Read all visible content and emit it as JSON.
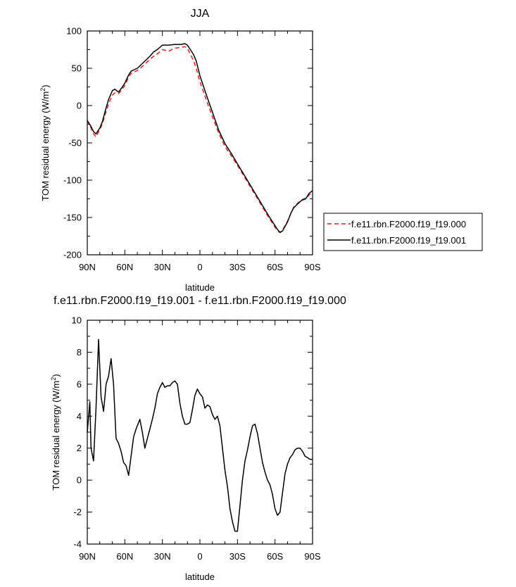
{
  "chart_data": [
    {
      "type": "line",
      "title": "JJA",
      "xlabel": "latitude",
      "ylabel_main": "TOM residual energy (W/m",
      "ylabel_sup": "2",
      "ylabel_tail": ")",
      "xlim": [
        90,
        -90
      ],
      "ylim": [
        -200,
        100
      ],
      "xticks": [
        90,
        60,
        30,
        0,
        -30,
        -60,
        -90
      ],
      "xtick_labels": [
        "90N",
        "60N",
        "30N",
        "0",
        "30S",
        "60S",
        "90S"
      ],
      "yticks": [
        -200,
        -150,
        -100,
        -50,
        0,
        50,
        100
      ],
      "ytick_labels": [
        "-200",
        "-150",
        "-100",
        "-50",
        "0",
        "50",
        "100"
      ],
      "legend_position": "right",
      "grid": false,
      "series": [
        {
          "name": "f.e11.rbn.F2000.f19_f19.000",
          "color": "#e0201b",
          "dash": "dashed",
          "x": [
            90,
            87,
            85,
            83,
            80,
            78,
            75,
            73,
            70,
            68,
            65,
            62,
            60,
            57,
            55,
            50,
            45,
            40,
            37,
            35,
            32,
            30,
            25,
            20,
            15,
            12,
            10,
            8,
            5,
            3,
            0,
            -5,
            -10,
            -15,
            -20,
            -25,
            -30,
            -35,
            -40,
            -45,
            -50,
            -55,
            -60,
            -62,
            -64,
            -66,
            -70,
            -73,
            -75,
            -78,
            -80,
            -82,
            -85,
            -87,
            -90
          ],
          "values": [
            -20,
            -30,
            -38,
            -42,
            -32,
            -25,
            -8,
            2,
            14,
            17,
            16,
            22,
            27,
            38,
            43,
            47,
            54,
            62,
            66,
            68,
            72,
            75,
            73,
            77,
            78,
            79,
            77,
            70,
            60,
            50,
            32,
            8,
            -15,
            -37,
            -55,
            -67,
            -80,
            -94,
            -108,
            -122,
            -136,
            -150,
            -163,
            -168,
            -170,
            -167,
            -155,
            -143,
            -136,
            -131,
            -128,
            -127,
            -125,
            -120,
            -116
          ]
        },
        {
          "name": "f.e11.rbn.F2000.f19_f19.001",
          "color": "#000000",
          "dash": "solid",
          "x": [
            90,
            87,
            85,
            83,
            80,
            78,
            75,
            73,
            70,
            68,
            65,
            62,
            60,
            57,
            55,
            50,
            45,
            40,
            37,
            35,
            32,
            30,
            25,
            20,
            15,
            12,
            10,
            8,
            5,
            3,
            0,
            -5,
            -10,
            -15,
            -20,
            -25,
            -30,
            -35,
            -40,
            -45,
            -50,
            -55,
            -60,
            -62,
            -64,
            -66,
            -70,
            -73,
            -75,
            -78,
            -80,
            -82,
            -85,
            -87,
            -90
          ],
          "values": [
            -20,
            -28,
            -35,
            -38,
            -30,
            -22,
            -3,
            8,
            20,
            22,
            18,
            25,
            30,
            41,
            46,
            50,
            58,
            66,
            72,
            74,
            78,
            81,
            81,
            82,
            82,
            83,
            81,
            76,
            68,
            60,
            40,
            15,
            -9,
            -33,
            -51,
            -64,
            -78,
            -92,
            -106,
            -120,
            -134,
            -148,
            -161,
            -166,
            -170,
            -168,
            -156,
            -143,
            -137,
            -132,
            -129,
            -126,
            -124,
            -118,
            -114
          ]
        }
      ]
    },
    {
      "type": "line",
      "title": "f.e11.rbn.F2000.f19_f19.001 - f.e11.rbn.F2000.f19_f19.000",
      "xlabel": "latitude",
      "ylabel_main": "TOM residual energy (W/m",
      "ylabel_sup": "2",
      "ylabel_tail": ")",
      "xlim": [
        90,
        -90
      ],
      "ylim": [
        -4,
        10
      ],
      "xticks": [
        90,
        60,
        30,
        0,
        -30,
        -60,
        -90
      ],
      "xtick_labels": [
        "90N",
        "60N",
        "30N",
        "0",
        "30S",
        "60S",
        "90S"
      ],
      "yticks": [
        -4,
        -2,
        0,
        2,
        4,
        6,
        8,
        10
      ],
      "ytick_labels": [
        "-4",
        "-2",
        "0",
        "2",
        "4",
        "6",
        "8",
        "10"
      ],
      "grid": false,
      "series": [
        {
          "color": "#000000",
          "dash": "solid",
          "x": [
            90,
            88,
            87,
            85,
            83,
            81,
            79,
            77,
            75,
            73,
            71,
            69,
            67,
            65,
            63,
            61,
            59,
            57,
            55,
            53,
            51,
            48,
            46,
            44,
            42,
            40,
            38,
            36,
            34,
            32,
            30,
            28,
            26,
            24,
            22,
            20,
            18,
            16,
            14,
            12,
            10,
            8,
            6,
            4,
            2,
            0,
            -2,
            -4,
            -6,
            -8,
            -10,
            -12,
            -14,
            -16,
            -18,
            -20,
            -22,
            -24,
            -26,
            -28,
            -30,
            -32,
            -34,
            -36,
            -38,
            -40,
            -42,
            -44,
            -46,
            -48,
            -50,
            -52,
            -54,
            -56,
            -58,
            -60,
            -62,
            -64,
            -66,
            -68,
            -70,
            -72,
            -74,
            -76,
            -78,
            -80,
            -82,
            -84,
            -86,
            -88,
            -90
          ],
          "values": [
            3.0,
            4.9,
            2.0,
            1.2,
            4.5,
            8.8,
            5.2,
            4.3,
            6.0,
            6.5,
            7.6,
            6.0,
            2.6,
            2.3,
            1.8,
            1.1,
            0.9,
            0.3,
            1.5,
            2.7,
            3.2,
            3.8,
            3.0,
            2.0,
            2.6,
            3.2,
            3.8,
            4.5,
            5.4,
            5.8,
            6.1,
            5.8,
            5.9,
            5.9,
            6.1,
            6.2,
            6.0,
            4.8,
            4.0,
            3.5,
            3.5,
            3.6,
            4.4,
            5.3,
            5.7,
            5.4,
            5.2,
            4.5,
            4.7,
            4.6,
            4.1,
            3.8,
            4.0,
            3.4,
            2.0,
            0.6,
            -0.4,
            -1.8,
            -2.6,
            -3.2,
            -3.2,
            -1.6,
            0.0,
            1.2,
            1.9,
            2.7,
            3.4,
            3.5,
            2.9,
            2.0,
            1.1,
            0.5,
            0.0,
            -0.3,
            -0.9,
            -1.8,
            -2.2,
            -2.0,
            -0.8,
            0.4,
            1.0,
            1.4,
            1.6,
            1.9,
            2.0,
            2.0,
            1.8,
            1.5,
            1.4,
            1.3,
            1.3
          ]
        }
      ]
    }
  ]
}
